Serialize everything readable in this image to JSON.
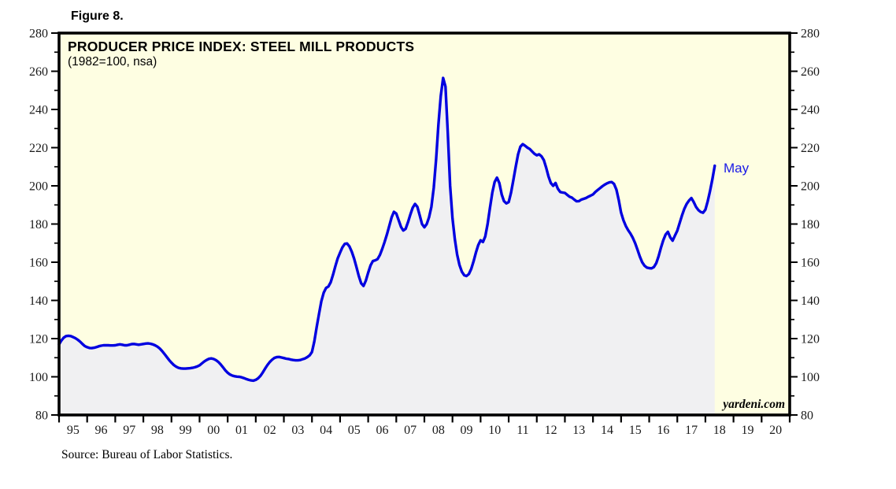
{
  "chart_data": {
    "type": "area",
    "figure_label": "Figure 8.",
    "title": "PRODUCER PRICE INDEX: STEEL MILL PRODUCTS",
    "subtitle": "(1982=100, nsa)",
    "watermark": "yardeni.com",
    "source_note": "Source: Bureau of Labor Statistics.",
    "grid": false,
    "legend": "none",
    "ylim": [
      80,
      280
    ],
    "y_major_tick_step": 20,
    "y_minor_tick_step": 10,
    "y_axis_sides": [
      "left",
      "right"
    ],
    "x_domain_years": [
      1995,
      2021
    ],
    "x_tick_labels": [
      "95",
      "96",
      "97",
      "98",
      "99",
      "00",
      "01",
      "02",
      "03",
      "04",
      "05",
      "06",
      "07",
      "08",
      "09",
      "10",
      "11",
      "12",
      "13",
      "14",
      "15",
      "16",
      "17",
      "18",
      "19",
      "20"
    ],
    "last_point_annotation": {
      "label": "May",
      "value": 210.5,
      "date": "2018-05"
    },
    "colors": {
      "line": "#0000e0",
      "area_fill": "#f0f0f2",
      "plot_background": "#fefee2",
      "frame": "#000000",
      "tick_label": "#1a1a1a",
      "annotation": "#1a1ae6"
    },
    "series": [
      {
        "name": "Producer Price Index: Steel Mill Products (1982=100, nsa)",
        "frequency": "monthly",
        "start": "1995-01",
        "end": "2018-05",
        "values_by_year": {
          "1995": [
            117.0,
            119.0,
            120.5,
            121.3,
            121.5,
            121.3,
            120.8,
            120.2,
            119.4,
            118.4,
            117.2,
            116.1
          ],
          "1996": [
            115.5,
            115.1,
            115.0,
            115.2,
            115.6,
            116.0,
            116.3,
            116.5,
            116.5,
            116.5,
            116.4,
            116.4
          ],
          "1997": [
            116.5,
            116.8,
            117.0,
            116.8,
            116.5,
            116.5,
            116.8,
            117.1,
            117.2,
            117.0,
            116.8,
            117.0
          ],
          "1998": [
            117.2,
            117.4,
            117.5,
            117.3,
            117.0,
            116.5,
            115.8,
            114.8,
            113.5,
            112.0,
            110.4,
            108.8
          ],
          "1999": [
            107.4,
            106.2,
            105.3,
            104.7,
            104.4,
            104.3,
            104.3,
            104.4,
            104.5,
            104.7,
            105.0,
            105.4
          ],
          "2000": [
            106.0,
            107.0,
            108.0,
            108.8,
            109.4,
            109.6,
            109.3,
            108.7,
            107.8,
            106.5,
            105.0,
            103.4
          ],
          "2001": [
            102.1,
            101.2,
            100.6,
            100.3,
            100.1,
            100.0,
            99.7,
            99.3,
            98.8,
            98.4,
            98.1,
            98.0
          ],
          "2002": [
            98.4,
            99.2,
            100.5,
            102.3,
            104.3,
            106.2,
            107.8,
            109.0,
            109.9,
            110.3,
            110.4,
            110.1
          ],
          "2003": [
            109.8,
            109.5,
            109.3,
            109.0,
            108.8,
            108.6,
            108.6,
            108.8,
            109.2,
            109.6,
            110.3,
            111.2
          ],
          "2004": [
            113.0,
            118.5,
            126.0,
            133.0,
            139.5,
            144.0,
            146.5,
            147.3,
            149.5,
            153.5,
            158.0,
            162.0
          ],
          "2005": [
            165.0,
            167.8,
            169.6,
            169.8,
            168.3,
            165.5,
            161.8,
            157.5,
            152.8,
            149.0,
            147.6,
            150.3
          ],
          "2006": [
            154.5,
            158.3,
            160.6,
            161.0,
            161.6,
            163.8,
            167.0,
            170.5,
            174.5,
            179.0,
            183.5,
            186.4
          ],
          "2007": [
            185.5,
            182.0,
            178.5,
            176.6,
            177.5,
            181.0,
            185.0,
            188.5,
            190.5,
            189.0,
            184.5,
            180.0
          ],
          "2008": [
            178.3,
            180.0,
            183.5,
            189.0,
            199.0,
            214.0,
            232.0,
            247.0,
            256.5,
            252.0,
            228.0,
            200.0
          ],
          "2009": [
            183.0,
            172.0,
            164.0,
            158.5,
            155.0,
            153.2,
            152.8,
            153.8,
            156.5,
            160.5,
            165.0,
            169.0
          ],
          "2010": [
            171.5,
            170.6,
            173.5,
            180.0,
            188.5,
            196.5,
            202.0,
            204.3,
            201.5,
            195.5,
            192.0,
            190.8
          ],
          "2011": [
            191.5,
            196.5,
            203.0,
            210.0,
            216.5,
            220.5,
            221.8,
            221.0,
            220.0,
            219.3,
            218.0,
            216.8
          ],
          "2012": [
            216.0,
            216.5,
            215.5,
            213.5,
            209.5,
            205.0,
            201.5,
            200.0,
            201.5,
            198.5,
            196.8,
            196.5
          ],
          "2013": [
            196.3,
            195.3,
            194.3,
            193.8,
            192.8,
            191.9,
            192.0,
            192.8,
            193.2,
            193.6,
            194.3,
            194.9
          ],
          "2014": [
            195.5,
            196.8,
            197.8,
            198.8,
            199.8,
            200.6,
            201.3,
            201.8,
            202.0,
            201.0,
            198.0,
            192.5
          ],
          "2015": [
            186.0,
            182.0,
            179.0,
            176.8,
            175.0,
            172.8,
            170.0,
            166.5,
            163.0,
            160.0,
            158.2,
            157.2
          ],
          "2016": [
            156.9,
            156.8,
            157.5,
            159.5,
            163.0,
            167.5,
            171.5,
            174.5,
            175.9,
            173.0,
            171.3,
            174.0
          ],
          "2017": [
            176.5,
            180.5,
            184.5,
            188.0,
            190.5,
            192.3,
            193.6,
            191.5,
            189.0,
            187.3,
            186.3,
            185.9
          ],
          "2018": [
            187.5,
            192.0,
            197.5,
            203.5,
            210.5
          ]
        }
      }
    ]
  }
}
